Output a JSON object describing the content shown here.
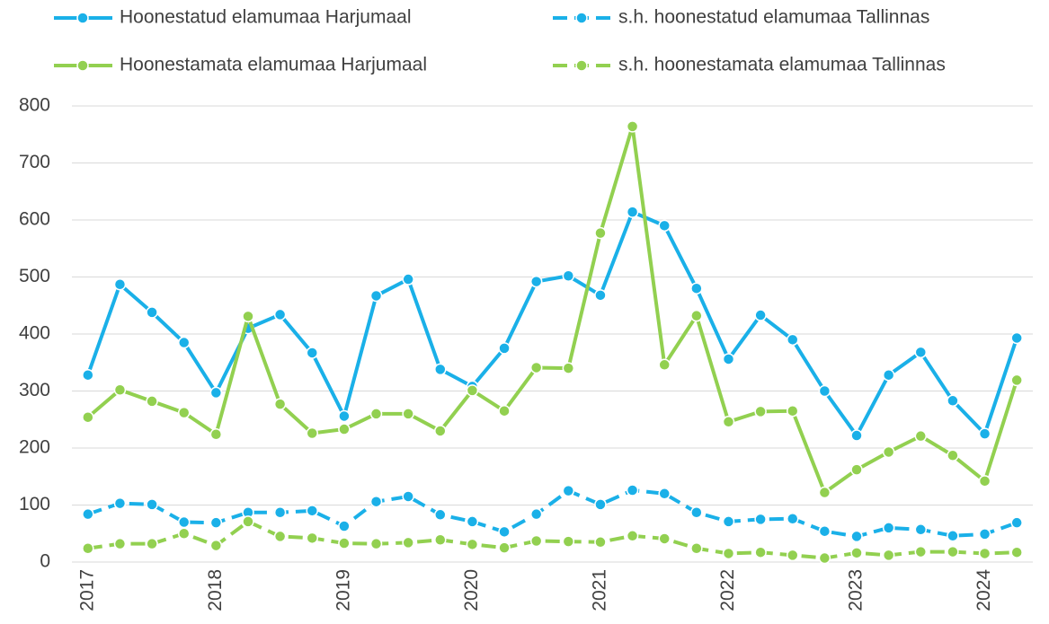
{
  "chart_data": {
    "type": "line",
    "categories": [
      "2017",
      null,
      null,
      null,
      "2018",
      null,
      null,
      null,
      "2019",
      null,
      null,
      null,
      "2020",
      null,
      null,
      null,
      "2021",
      null,
      null,
      null,
      "2022",
      null,
      null,
      null,
      "2023",
      null,
      null,
      null,
      "2024",
      null
    ],
    "series": [
      {
        "name": "Hoonestatud elamumaa Harjumaal",
        "color": "#1ab0e8",
        "dashed": false,
        "values": [
          328,
          487,
          438,
          385,
          297,
          410,
          434,
          367,
          256,
          467,
          496,
          338,
          308,
          375,
          492,
          502,
          468,
          614,
          590,
          480,
          356,
          433,
          390,
          300,
          222,
          328,
          368,
          283,
          225,
          393
        ]
      },
      {
        "name": "s.h. hoonestatud elamumaa Tallinnas",
        "color": "#1ab0e8",
        "dashed": true,
        "values": [
          84,
          103,
          101,
          70,
          69,
          87,
          87,
          90,
          63,
          106,
          115,
          83,
          71,
          53,
          84,
          125,
          101,
          126,
          120,
          87,
          71,
          75,
          76,
          54,
          45,
          60,
          57,
          46,
          49,
          69
        ]
      },
      {
        "name": "Hoonestamata elamumaa Harjumaal",
        "color": "#92d050",
        "dashed": false,
        "values": [
          254,
          302,
          282,
          262,
          224,
          431,
          277,
          226,
          233,
          260,
          260,
          230,
          301,
          265,
          341,
          340,
          577,
          764,
          346,
          432,
          246,
          264,
          265,
          122,
          162,
          193,
          221,
          187,
          142,
          319
        ]
      },
      {
        "name": "s.h. hoonestamata elamumaa Tallinnas",
        "color": "#92d050",
        "dashed": true,
        "values": [
          24,
          32,
          32,
          50,
          29,
          71,
          45,
          42,
          33,
          32,
          34,
          39,
          31,
          25,
          37,
          36,
          35,
          46,
          41,
          24,
          15,
          17,
          12,
          7,
          16,
          12,
          18,
          18,
          15,
          17
        ]
      }
    ],
    "ylim": [
      0,
      800
    ],
    "yticks": [
      0,
      100,
      200,
      300,
      400,
      500,
      600,
      700,
      800
    ],
    "grid": true,
    "legend": "top"
  }
}
